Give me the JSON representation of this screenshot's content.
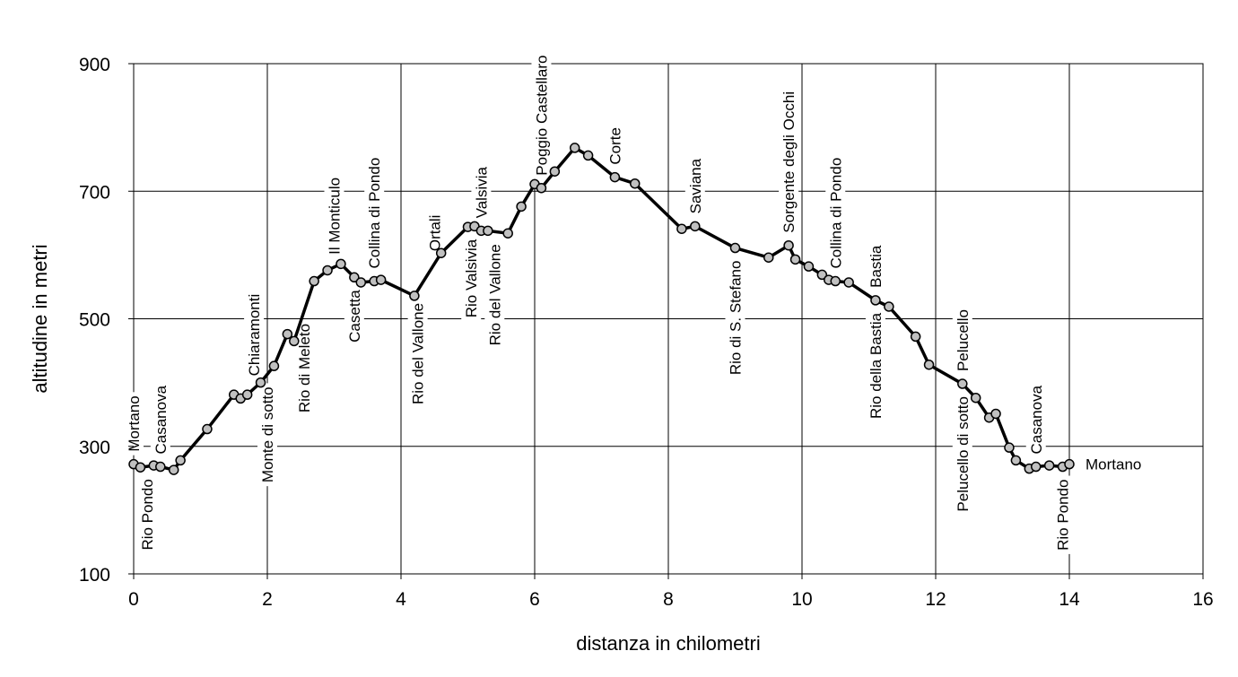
{
  "chart_data": {
    "type": "line",
    "xlabel": "distanza in chilometri",
    "ylabel": "altitudine  in metri",
    "xlim": [
      0,
      16
    ],
    "ylim": [
      100,
      900
    ],
    "xticks": [
      0,
      2,
      4,
      6,
      8,
      10,
      12,
      14,
      16
    ],
    "yticks": [
      100,
      300,
      500,
      700,
      900
    ],
    "grid": true,
    "grid_x_lines": [
      0,
      2,
      4,
      6,
      8,
      10,
      12,
      14
    ],
    "grid_y_lines": [
      300,
      500,
      700
    ],
    "series": [
      {
        "color": "#000000",
        "marker_color": "#c0c0c0",
        "x": [
          0.0,
          0.1,
          0.3,
          0.4,
          0.6,
          0.7,
          1.1,
          1.5,
          1.6,
          1.7,
          1.9,
          2.1,
          2.3,
          2.4,
          2.7,
          2.9,
          3.1,
          3.3,
          3.4,
          3.6,
          3.7,
          4.2,
          4.6,
          5.0,
          5.1,
          5.2,
          5.3,
          5.6,
          5.8,
          6.0,
          6.1,
          6.3,
          6.6,
          6.8,
          7.2,
          7.5,
          8.2,
          8.4,
          9.0,
          9.5,
          9.8,
          9.9,
          10.1,
          10.3,
          10.4,
          10.5,
          10.7,
          11.1,
          11.3,
          11.7,
          11.9,
          12.4,
          12.6,
          12.8,
          12.9,
          13.1,
          13.2,
          13.4,
          13.5,
          13.7,
          13.9,
          14.0
        ],
        "y": [
          272,
          267,
          270,
          268,
          263,
          278,
          327,
          381,
          375,
          381,
          400,
          426,
          476,
          465,
          559,
          576,
          586,
          565,
          557,
          559,
          561,
          536,
          603,
          644,
          645,
          638,
          638,
          634,
          676,
          711,
          705,
          731,
          768,
          756,
          722,
          712,
          641,
          645,
          611,
          596,
          615,
          593,
          582,
          569,
          561,
          559,
          557,
          529,
          519,
          472,
          428,
          398,
          376,
          345,
          351,
          298,
          278,
          265,
          268,
          270,
          268,
          272
        ]
      }
    ],
    "annotations": {
      "above": [
        {
          "text": "Mortano",
          "x": 0.0
        },
        {
          "text": "Casanova",
          "x": 0.4
        },
        {
          "text": "Chiaramonti",
          "x": 1.8
        },
        {
          "text": "Il Monticulo",
          "x": 3.0
        },
        {
          "text": "Collina di Pondo",
          "x": 3.6
        },
        {
          "text": "Ortali",
          "x": 4.5
        },
        {
          "text": "Valsivia",
          "x": 5.2
        },
        {
          "text": "Poggio Castellaro",
          "x": 6.1
        },
        {
          "text": "Corte",
          "x": 7.2
        },
        {
          "text": "Saviana",
          "x": 8.4
        },
        {
          "text": "Sorgente degli Occhi",
          "x": 9.8
        },
        {
          "text": "Collina di Pondo",
          "x": 10.5
        },
        {
          "text": "Bastia",
          "x": 11.1
        },
        {
          "text": "Pelucello",
          "x": 12.4
        },
        {
          "text": "Casanova",
          "x": 13.5
        }
      ],
      "below": [
        {
          "text": "Rio Pondo",
          "x": 0.2
        },
        {
          "text": "Monte di sotto",
          "x": 2.0
        },
        {
          "text": "Rio di Meleto",
          "x": 2.55
        },
        {
          "text": "Casetta",
          "x": 3.3
        },
        {
          "text": "Rio del Vallone",
          "x": 4.25
        },
        {
          "text": "Rio Valsivia",
          "x": 5.05
        },
        {
          "text": "Rio del Vallone",
          "x": 5.4
        },
        {
          "text": "Rio di S. Stefano",
          "x": 9.0
        },
        {
          "text": "Rio della Bastia",
          "x": 11.1
        },
        {
          "text": "Pelucello di sotto",
          "x": 12.4
        },
        {
          "text": "Rio Pondo",
          "x": 13.9
        }
      ],
      "side": [
        {
          "text": "Mortano",
          "x": 14.0
        }
      ]
    }
  }
}
